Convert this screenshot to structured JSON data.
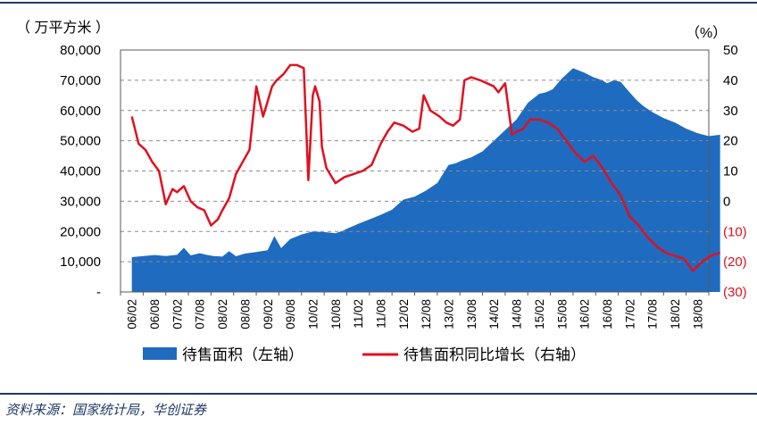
{
  "chart_data": {
    "type": "area+line",
    "left_unit": "（ 万平方米 ）",
    "right_unit": "（%）",
    "left_axis": {
      "min": 0,
      "max": 80000,
      "ticks": [
        "-",
        "10,000",
        "20,000",
        "30,000",
        "40,000",
        "50,000",
        "60,000",
        "70,000",
        "80,000"
      ]
    },
    "right_axis": {
      "min": -30,
      "max": 50,
      "ticks": [
        "(30)",
        "(20)",
        "(10)",
        "0",
        "10",
        "20",
        "30",
        "40",
        "50"
      ]
    },
    "x_labels": [
      "06/02",
      "06/08",
      "07/02",
      "07/08",
      "08/02",
      "08/08",
      "09/02",
      "09/08",
      "10/02",
      "10/08",
      "11/02",
      "11/08",
      "12/02",
      "12/08",
      "13/02",
      "13/08",
      "14/02",
      "14/08",
      "15/02",
      "15/08",
      "16/02",
      "16/08",
      "17/02",
      "17/08",
      "18/02",
      "18/08"
    ],
    "series": [
      {
        "name": "待售面积（左轴）",
        "axis": "left",
        "style": "area",
        "color": "#1f6bbf",
        "x": [
          0,
          1,
          1.5,
          2,
          2.3,
          2.6,
          3,
          3.3,
          3.6,
          4,
          4.3,
          4.6,
          5,
          5.5,
          6,
          6.3,
          6.6,
          7,
          7.5,
          8,
          8.5,
          9,
          9.3,
          9.6,
          10,
          10.5,
          11,
          11.5,
          12,
          12.5,
          13,
          13.5,
          14,
          14.3,
          14.6,
          15,
          15.5,
          16,
          16.5,
          17,
          17.5,
          18,
          18.3,
          18.6,
          19,
          19.5,
          20,
          20.4,
          20.8,
          21,
          21.3,
          21.6,
          22,
          22.3,
          22.6,
          23,
          23.5,
          24,
          24.5,
          25,
          25.5,
          26
        ],
        "values": [
          11500,
          12200,
          11900,
          12300,
          14600,
          12100,
          12800,
          12300,
          11900,
          11700,
          13500,
          11800,
          12700,
          13200,
          13800,
          18500,
          14500,
          17500,
          19000,
          20000,
          19800,
          19400,
          20200,
          21200,
          22500,
          24000,
          25500,
          27200,
          30500,
          31500,
          33500,
          36000,
          42000,
          42500,
          43500,
          44500,
          46500,
          50000,
          53500,
          57000,
          62500,
          65500,
          66000,
          67000,
          70500,
          74000,
          72500,
          71000,
          70000,
          69000,
          70000,
          69500,
          66000,
          63500,
          61500,
          59500,
          57500,
          56000,
          54000,
          52500,
          51500,
          52000
        ]
      },
      {
        "name": "待售面积同比增长（右轴）",
        "axis": "right",
        "style": "line",
        "color": "#e0101e",
        "x": [
          0,
          0.3,
          0.6,
          0.9,
          1.2,
          1.5,
          1.8,
          2,
          2.3,
          2.6,
          2.9,
          3.2,
          3.5,
          3.8,
          4,
          4.3,
          4.6,
          4.9,
          5.2,
          5.5,
          5.8,
          6,
          6.2,
          6.4,
          6.7,
          7,
          7.3,
          7.6,
          7.8,
          8,
          8.1,
          8.3,
          8.4,
          8.6,
          9,
          9.4,
          9.8,
          10.2,
          10.6,
          11,
          11.3,
          11.6,
          12,
          12.4,
          12.7,
          12.9,
          13.2,
          13.6,
          13.9,
          14.2,
          14.5,
          14.7,
          15,
          15.4,
          15.7,
          16,
          16.2,
          16.5,
          16.8,
          17,
          17.3,
          17.6,
          18,
          18.4,
          18.8,
          19.2,
          19.6,
          20,
          20.4,
          20.8,
          21.2,
          21.6,
          22,
          22.4,
          22.8,
          23.2,
          23.6,
          24,
          24.4,
          24.8,
          25.2,
          25.6,
          26
        ],
        "values": [
          28,
          19,
          17,
          13,
          10,
          -1,
          4,
          3,
          5,
          0,
          -2,
          -3,
          -8,
          -6,
          -3,
          1,
          9,
          13,
          17,
          38,
          28,
          33,
          38,
          40,
          42,
          45,
          45,
          44,
          7,
          35,
          38,
          33,
          18,
          11,
          6,
          8,
          9,
          10,
          12,
          19,
          23,
          26,
          25,
          23,
          24,
          35,
          30,
          28,
          26,
          25,
          27,
          40,
          41,
          40,
          39,
          38,
          36,
          39,
          22,
          23,
          24,
          27,
          27,
          26,
          24,
          20,
          16,
          13,
          15,
          11,
          6,
          2,
          -5,
          -8,
          -12,
          -15,
          -17,
          -18,
          -19,
          -23,
          -20,
          -18,
          -17
        ]
      }
    ],
    "legend": [
      "待售面积（左轴）",
      "待售面积同比增长（右轴）"
    ],
    "legend_position": "bottom",
    "grid": "dashed horizontal"
  },
  "source": "资料来源：国家统计局，华创证券"
}
